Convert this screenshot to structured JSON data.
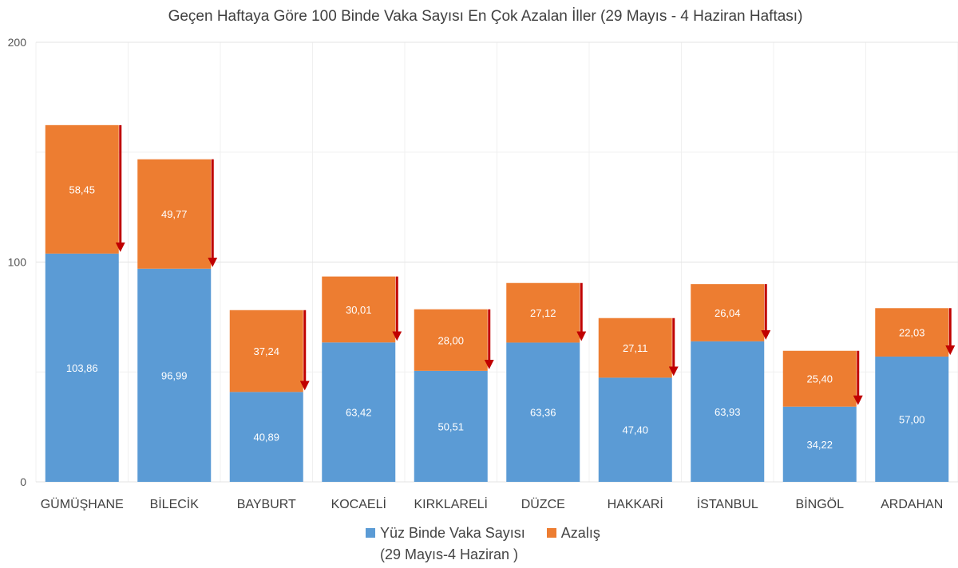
{
  "chart_data": {
    "type": "bar",
    "stacked": true,
    "title": "Geçen Haftaya Göre 100 Binde Vaka Sayısı En Çok Azalan İller (29 Mayıs - 4 Haziran Haftası)",
    "categories": [
      "GÜMÜŞHANE",
      "BİLECİK",
      "BAYBURT",
      "KOCAELİ",
      "KIRKLARELİ",
      "DÜZCE",
      "HAKKARİ",
      "İSTANBUL",
      "BİNGÖL",
      "ARDAHAN"
    ],
    "series": [
      {
        "name": "Yüz Binde Vaka Sayısı",
        "name_line2": "(29 Mayıs-4 Haziran )",
        "color": "#5b9bd5",
        "values": [
          103.86,
          96.99,
          40.89,
          63.42,
          50.51,
          63.36,
          47.4,
          63.93,
          34.22,
          57.0
        ],
        "labels": [
          "103,86",
          "96,99",
          "40,89",
          "63,42",
          "50,51",
          "63,36",
          "47,40",
          "63,93",
          "34,22",
          "57,00"
        ]
      },
      {
        "name": "Azalış",
        "color": "#ed7d31",
        "values": [
          58.45,
          49.77,
          37.24,
          30.01,
          28.0,
          27.12,
          27.11,
          26.04,
          25.4,
          22.03
        ],
        "labels": [
          "58,45",
          "49,77",
          "37,24",
          "30,01",
          "28,00",
          "27,12",
          "27,11",
          "26,04",
          "25,40",
          "22,03"
        ]
      }
    ],
    "ylim": [
      0,
      200
    ],
    "yticks": [
      "0",
      "100",
      "200"
    ],
    "grid": true,
    "legend": "bottom",
    "arrow_color": "#c00000"
  }
}
